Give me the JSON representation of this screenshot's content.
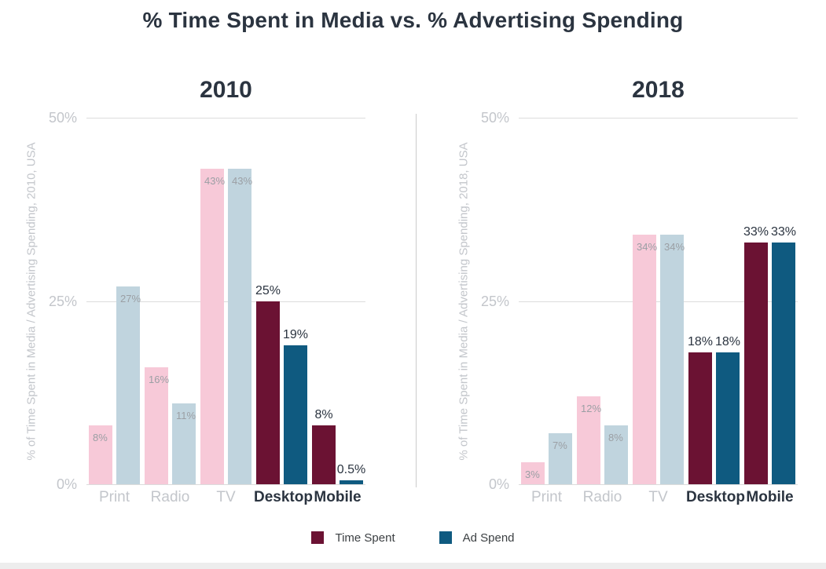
{
  "page": {
    "title": "% Time Spent in Media vs. % Advertising Spending"
  },
  "legend": {
    "items": [
      {
        "label": "Time Spent",
        "color": "#6B1233"
      },
      {
        "label": "Ad Spend",
        "color": "#0F5A80"
      }
    ]
  },
  "style": {
    "muted_time_color": "#F7C9D8",
    "muted_ad_color": "#C0D4DE",
    "highlight_time_color": "#6B1233",
    "highlight_ad_color": "#0F5A80",
    "dark_text_color": "#2B3440",
    "muted_label_color": "#9B9FA4",
    "axis_text_color": "#C3C6CB",
    "grid_color": "#DCDCDC"
  },
  "chart_data": [
    {
      "type": "bar",
      "title": "2010",
      "ylabel": "% of Time Spent in Media / Advertising Spending, 2010, USA",
      "categories": [
        "Print",
        "Radio",
        "TV",
        "Desktop",
        "Mobile"
      ],
      "series": [
        {
          "name": "Time Spent",
          "values": [
            8,
            16,
            43,
            25,
            8
          ],
          "labels": [
            "8%",
            "16%",
            "43%",
            "25%",
            "8%"
          ]
        },
        {
          "name": "Ad Spend",
          "values": [
            27,
            11,
            43,
            19,
            0.5
          ],
          "labels": [
            "27%",
            "11%",
            "43%",
            "19%",
            "0.5%"
          ]
        }
      ],
      "ylim": [
        0,
        50
      ],
      "yticks": [
        {
          "value": 0,
          "label": "0%"
        },
        {
          "value": 25,
          "label": "25%"
        },
        {
          "value": 50,
          "label": "50%"
        }
      ],
      "highlight_start_index": 3,
      "grid": true,
      "legend_position": "bottom"
    },
    {
      "type": "bar",
      "title": "2018",
      "ylabel": "% of Time Spent in Media / Advertising Spending, 2018, USA",
      "categories": [
        "Print",
        "Radio",
        "TV",
        "Desktop",
        "Mobile"
      ],
      "series": [
        {
          "name": "Time Spent",
          "values": [
            3,
            12,
            34,
            18,
            33
          ],
          "labels": [
            "3%",
            "12%",
            "34%",
            "18%",
            "33%"
          ]
        },
        {
          "name": "Ad Spend",
          "values": [
            7,
            8,
            34,
            18,
            33
          ],
          "labels": [
            "7%",
            "8%",
            "34%",
            "18%",
            "33%"
          ]
        }
      ],
      "ylim": [
        0,
        50
      ],
      "yticks": [
        {
          "value": 0,
          "label": "0%"
        },
        {
          "value": 25,
          "label": "25%"
        },
        {
          "value": 50,
          "label": "50%"
        }
      ],
      "highlight_start_index": 3,
      "grid": true,
      "legend_position": "bottom"
    }
  ]
}
